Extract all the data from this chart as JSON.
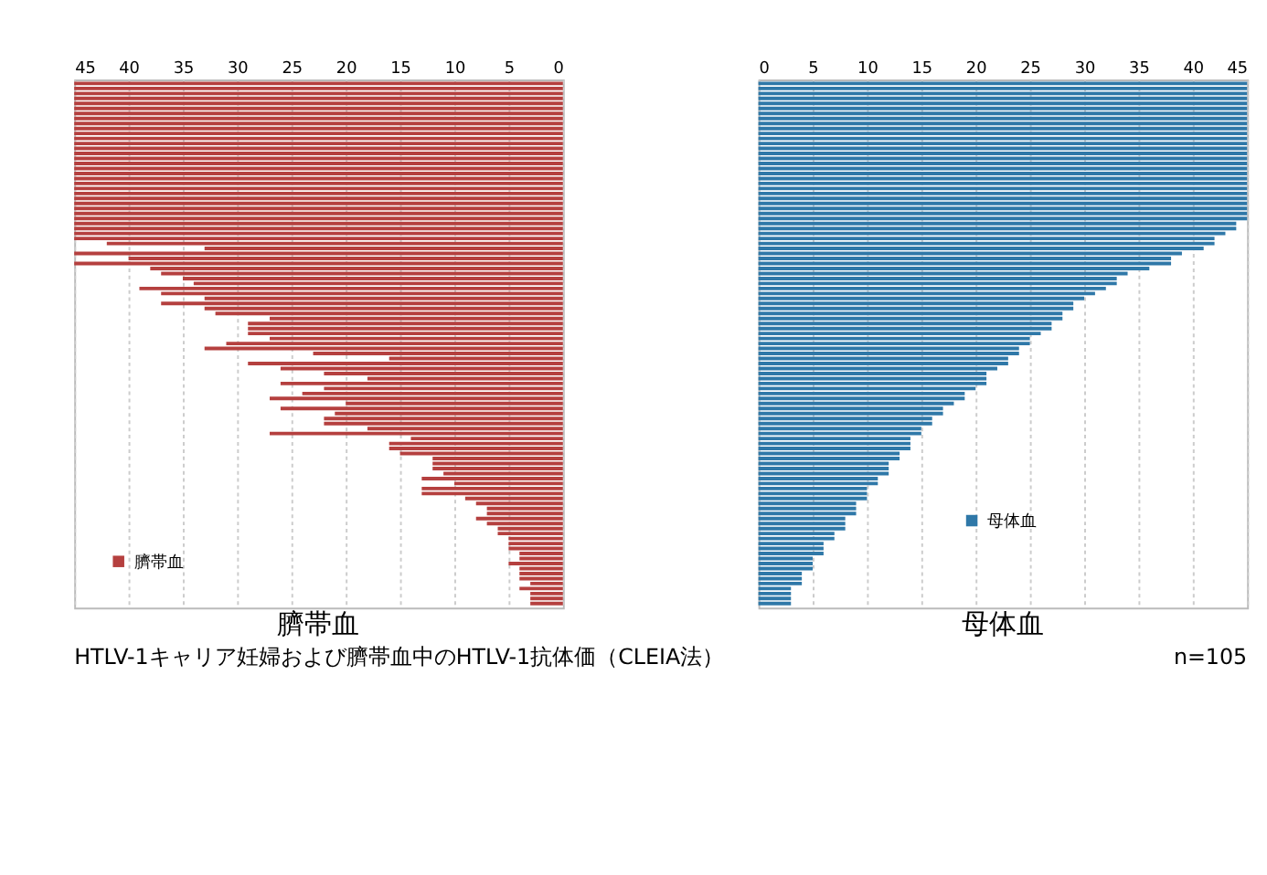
{
  "chart_data": [
    {
      "type": "bar",
      "orientation": "horizontal",
      "xlabel": "臍帯血",
      "categories": [
        null,
        null,
        null,
        null,
        null,
        null,
        null,
        null,
        null,
        null,
        null,
        null,
        null,
        null,
        null,
        null,
        null,
        null,
        null,
        null,
        null,
        null,
        null,
        null,
        null,
        null,
        null,
        null,
        null,
        null,
        null,
        null,
        null,
        null,
        null,
        null,
        null,
        null,
        null,
        null,
        null,
        null,
        null,
        null,
        null,
        null,
        null,
        null,
        null,
        null,
        null,
        null,
        null,
        null,
        null,
        null,
        null,
        null,
        null,
        null,
        null,
        null,
        null,
        null,
        null,
        null,
        null,
        null,
        null,
        null,
        null,
        null,
        null,
        null,
        null,
        null,
        null,
        null,
        null,
        null,
        null,
        null,
        null,
        null,
        null,
        null,
        null,
        null,
        null,
        null,
        null,
        null,
        null,
        null,
        null,
        null,
        null,
        null,
        null,
        null,
        null,
        null,
        null,
        null,
        null
      ],
      "series": [
        {
          "name": "臍帯血",
          "color": "#b5403f",
          "values": [
            45,
            45,
            45,
            45,
            45,
            45,
            45,
            45,
            45,
            45,
            45,
            45,
            45,
            45,
            45,
            45,
            45,
            45,
            45,
            45,
            45,
            45,
            45,
            45,
            45,
            45,
            45,
            45,
            45,
            45,
            45,
            45,
            42,
            33,
            45,
            40,
            45,
            38,
            37,
            35,
            34,
            39,
            37,
            33,
            37,
            33,
            32,
            27,
            29,
            29,
            29,
            27,
            31,
            33,
            23,
            16,
            29,
            26,
            22,
            18,
            26,
            22,
            24,
            27,
            20,
            26,
            21,
            22,
            22,
            18,
            27,
            14,
            16,
            16,
            15,
            12,
            12,
            12,
            11,
            13,
            10,
            13,
            13,
            9,
            8,
            7,
            7,
            8,
            7,
            6,
            6,
            5,
            5,
            5,
            4,
            4,
            5,
            4,
            4,
            4,
            3,
            4,
            3,
            3,
            3
          ]
        }
      ],
      "xlim": [
        45,
        0
      ],
      "xticks": [
        45,
        40,
        35,
        30,
        25,
        20,
        15,
        10,
        5,
        0
      ],
      "grid": "x",
      "legend": "bottom left",
      "tick_labels": "x",
      "annotations": [
        "HTLV-1キャリア妊婦および臍帯血中のHTLV-1抗体価（CLEIA法）"
      ]
    },
    {
      "type": "bar",
      "orientation": "horizontal",
      "xlabel": "母体血",
      "categories": [
        null,
        null,
        null,
        null,
        null,
        null,
        null,
        null,
        null,
        null,
        null,
        null,
        null,
        null,
        null,
        null,
        null,
        null,
        null,
        null,
        null,
        null,
        null,
        null,
        null,
        null,
        null,
        null,
        null,
        null,
        null,
        null,
        null,
        null,
        null,
        null,
        null,
        null,
        null,
        null,
        null,
        null,
        null,
        null,
        null,
        null,
        null,
        null,
        null,
        null,
        null,
        null,
        null,
        null,
        null,
        null,
        null,
        null,
        null,
        null,
        null,
        null,
        null,
        null,
        null,
        null,
        null,
        null,
        null,
        null,
        null,
        null,
        null,
        null,
        null,
        null,
        null,
        null,
        null,
        null,
        null,
        null,
        null,
        null,
        null,
        null,
        null,
        null,
        null,
        null,
        null,
        null,
        null,
        null,
        null,
        null,
        null,
        null,
        null,
        null,
        null,
        null,
        null,
        null,
        null
      ],
      "series": [
        {
          "name": "母体血",
          "color": "#2f78a8",
          "values": [
            45,
            45,
            45,
            45,
            45,
            45,
            45,
            45,
            45,
            45,
            45,
            45,
            45,
            45,
            45,
            45,
            45,
            45,
            45,
            45,
            45,
            45,
            45,
            45,
            45,
            45,
            45,
            45,
            44,
            44,
            43,
            42,
            42,
            41,
            39,
            38,
            38,
            36,
            34,
            33,
            33,
            32,
            31,
            30,
            29,
            29,
            28,
            28,
            27,
            27,
            26,
            25,
            25,
            24,
            24,
            23,
            23,
            22,
            21,
            21,
            21,
            20,
            19,
            19,
            18,
            17,
            17,
            16,
            16,
            15,
            15,
            14,
            14,
            14,
            13,
            13,
            12,
            12,
            12,
            11,
            11,
            10,
            10,
            10,
            9,
            9,
            9,
            8,
            8,
            8,
            7,
            7,
            6,
            6,
            6,
            5,
            5,
            5,
            4,
            4,
            4,
            3,
            3,
            3,
            3
          ]
        }
      ],
      "xlim": [
        0,
        45
      ],
      "xticks": [
        0,
        5,
        10,
        15,
        20,
        25,
        30,
        35,
        40,
        45
      ],
      "grid": "x",
      "legend": "bottom",
      "tick_labels": "x",
      "annotations": [
        "n=105"
      ]
    }
  ]
}
